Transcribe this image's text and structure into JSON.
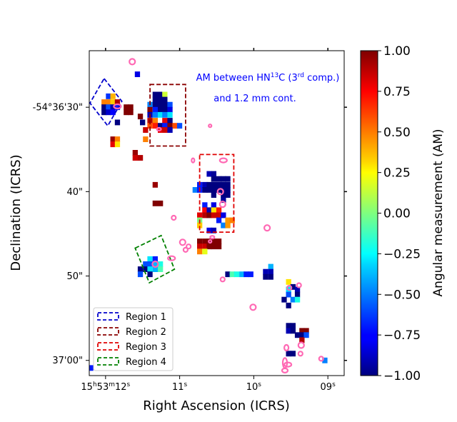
{
  "chart_data": {
    "type": "heatmap",
    "title": "",
    "annotation": {
      "line1_prefix": "AM between HN",
      "line1_sup": "13",
      "line1_mid": "C (3",
      "line1_sup2": "rd",
      "line1_suffix": " comp.)",
      "line2": "and 1.2 mm cont."
    },
    "xlabel": "Right Ascension (ICRS)",
    "ylabel": "Declination (ICRS)",
    "x_ticks": [
      {
        "label_parts": [
          "15",
          "h",
          "53",
          "m",
          "12",
          "s"
        ],
        "value": 12.0
      },
      {
        "label_parts": [
          "11",
          "s"
        ],
        "value": 11.0
      },
      {
        "label_parts": [
          "10",
          "s"
        ],
        "value": 10.0
      },
      {
        "label_parts": [
          "09",
          "s"
        ],
        "value": 9.0
      }
    ],
    "y_ticks": [
      {
        "label": "-54°36'30\"",
        "value": 30
      },
      {
        "label": "40\"",
        "value": 40
      },
      {
        "label": "50\"",
        "value": 50
      },
      {
        "label": "37'00\"",
        "value": 60
      }
    ],
    "xlim": [
      12.22,
      8.78
    ],
    "ylim": [
      61.8,
      23.3
    ],
    "colorbar": {
      "label": "Angular measurement (AM)",
      "range": [
        -1.0,
        1.0
      ],
      "tick_labels": [
        "1.00",
        "0.75",
        "0.50",
        "0.25",
        "0.00",
        "−0.25",
        "−0.50",
        "−0.75",
        "−1.00"
      ],
      "tick_values": [
        1.0,
        0.75,
        0.5,
        0.25,
        0.0,
        -0.25,
        -0.5,
        -0.75,
        -1.0
      ],
      "colormap": "jet"
    },
    "legend": {
      "placement": "lower-left",
      "entries": [
        {
          "name": "Region 1",
          "color": "#0000cc"
        },
        {
          "name": "Region 2",
          "color": "#8b0000"
        },
        {
          "name": "Region 3",
          "color": "#e00000"
        },
        {
          "name": "Region 4",
          "color": "#008000"
        }
      ]
    },
    "regions": [
      {
        "name": "Region 1",
        "color": "#0000cc",
        "corners": [
          [
            12.02,
            26.6
          ],
          [
            11.78,
            29.3
          ],
          [
            11.97,
            32.2
          ],
          [
            12.21,
            29.5
          ]
        ]
      },
      {
        "name": "Region 2",
        "color": "#8b0000",
        "corners": [
          [
            11.4,
            27.3
          ],
          [
            10.92,
            27.3
          ],
          [
            10.92,
            34.6
          ],
          [
            11.4,
            34.6
          ]
        ]
      },
      {
        "name": "Region 3",
        "color": "#e00000",
        "corners": [
          [
            10.73,
            35.6
          ],
          [
            10.27,
            35.6
          ],
          [
            10.27,
            44.8
          ],
          [
            10.73,
            44.8
          ]
        ]
      },
      {
        "name": "Region 4",
        "color": "#008000",
        "corners": [
          [
            11.6,
            46.7
          ],
          [
            11.25,
            45.2
          ],
          [
            11.07,
            49.2
          ],
          [
            11.41,
            50.8
          ]
        ]
      }
    ],
    "pixels": [
      [
        12.02,
        29.4,
        0.5
      ],
      [
        11.96,
        29.4,
        0.5
      ],
      [
        11.9,
        29.4,
        0.35
      ],
      [
        11.84,
        29.4,
        0.9
      ],
      [
        12.02,
        30.0,
        -1.0
      ],
      [
        11.96,
        30.0,
        -0.6
      ],
      [
        11.9,
        30.0,
        -0.9
      ],
      [
        11.84,
        30.0,
        -0.7
      ],
      [
        11.72,
        30.0,
        1.0
      ],
      [
        11.66,
        30.0,
        1.0
      ],
      [
        11.96,
        28.7,
        -0.65
      ],
      [
        11.9,
        28.7,
        0.4
      ],
      [
        12.02,
        30.6,
        -1.0
      ],
      [
        11.96,
        30.6,
        -0.85
      ],
      [
        11.9,
        30.6,
        -0.75
      ],
      [
        11.72,
        30.6,
        1.0
      ],
      [
        11.66,
        30.6,
        1.0
      ],
      [
        11.84,
        31.8,
        -1.0
      ],
      [
        11.57,
        26.1,
        -0.8
      ],
      [
        11.33,
        28.5,
        -1.0
      ],
      [
        11.26,
        28.5,
        -1.0
      ],
      [
        11.2,
        28.5,
        0.15
      ],
      [
        11.33,
        29.1,
        -1.0
      ],
      [
        11.26,
        29.1,
        -1.0
      ],
      [
        11.2,
        29.1,
        -1.0
      ],
      [
        11.4,
        29.7,
        -0.5
      ],
      [
        11.33,
        29.7,
        -1.0
      ],
      [
        11.26,
        29.7,
        -1.0
      ],
      [
        11.2,
        29.7,
        -1.0
      ],
      [
        11.13,
        29.7,
        -0.6
      ],
      [
        11.4,
        30.3,
        1.0
      ],
      [
        11.33,
        30.3,
        -0.7
      ],
      [
        11.26,
        30.3,
        -1.0
      ],
      [
        11.2,
        30.3,
        -1.0
      ],
      [
        11.13,
        30.3,
        -0.8
      ],
      [
        11.4,
        30.9,
        -0.9
      ],
      [
        11.33,
        30.9,
        -0.5
      ],
      [
        11.26,
        30.9,
        -0.3
      ],
      [
        11.2,
        30.9,
        -0.5
      ],
      [
        11.13,
        30.9,
        -0.3
      ],
      [
        11.53,
        31.1,
        1.0
      ],
      [
        11.4,
        31.6,
        0.9
      ],
      [
        11.33,
        31.6,
        0.5
      ],
      [
        11.2,
        31.6,
        0.8
      ],
      [
        11.13,
        31.6,
        -1.0
      ],
      [
        11.5,
        31.8,
        -1.0
      ],
      [
        11.4,
        32.2,
        0.6
      ],
      [
        11.33,
        32.2,
        0.7
      ],
      [
        11.26,
        32.2,
        -1.0
      ],
      [
        11.2,
        32.2,
        -0.7
      ],
      [
        11.13,
        32.2,
        1.0
      ],
      [
        11.06,
        32.2,
        0.6
      ],
      [
        11.0,
        32.2,
        -0.6
      ],
      [
        11.46,
        32.7,
        0.85
      ],
      [
        11.26,
        32.7,
        0.8
      ],
      [
        11.2,
        32.7,
        0.85
      ],
      [
        11.13,
        32.7,
        -0.9
      ],
      [
        11.9,
        33.8,
        0.95
      ],
      [
        11.84,
        33.8,
        0.5
      ],
      [
        11.46,
        33.8,
        0.5
      ],
      [
        11.9,
        34.4,
        0.8
      ],
      [
        11.84,
        34.4,
        0.3
      ],
      [
        11.6,
        35.4,
        0.95
      ],
      [
        11.6,
        36.0,
        0.85
      ],
      [
        11.53,
        36.0,
        0.9
      ],
      [
        11.33,
        39.2,
        0.95
      ],
      [
        10.6,
        37.9,
        -0.9
      ],
      [
        10.54,
        37.9,
        -0.95
      ],
      [
        10.54,
        38.5,
        -1.0
      ],
      [
        10.47,
        38.5,
        -1.0
      ],
      [
        10.41,
        38.5,
        -1.0
      ],
      [
        10.35,
        38.5,
        -1.0
      ],
      [
        10.73,
        39.2,
        -0.7
      ],
      [
        10.66,
        39.2,
        -0.9
      ],
      [
        10.6,
        39.2,
        -1.0
      ],
      [
        10.54,
        39.2,
        -1.0
      ],
      [
        10.47,
        39.2,
        -1.0
      ],
      [
        10.41,
        39.2,
        -1.0
      ],
      [
        10.35,
        39.2,
        -1.0
      ],
      [
        10.79,
        39.8,
        -0.5
      ],
      [
        10.73,
        39.8,
        -0.7
      ],
      [
        10.66,
        39.8,
        -1.0
      ],
      [
        10.6,
        39.8,
        -1.0
      ],
      [
        10.54,
        39.8,
        -1.0
      ],
      [
        10.47,
        39.8,
        -1.0
      ],
      [
        10.41,
        39.8,
        -1.0
      ],
      [
        10.35,
        39.8,
        -1.0
      ],
      [
        10.54,
        40.4,
        -1.0
      ],
      [
        10.41,
        40.4,
        -1.0
      ],
      [
        10.35,
        40.4,
        -1.0
      ],
      [
        10.41,
        41.0,
        -0.95
      ],
      [
        10.66,
        41.6,
        -0.7
      ],
      [
        10.54,
        41.6,
        -0.8
      ],
      [
        11.33,
        41.4,
        1.0
      ],
      [
        11.26,
        41.4,
        1.0
      ],
      [
        10.66,
        42.2,
        0.75
      ],
      [
        10.6,
        42.2,
        -0.9
      ],
      [
        10.54,
        42.2,
        0.3
      ],
      [
        10.47,
        42.2,
        0.7
      ],
      [
        10.73,
        42.8,
        0.8
      ],
      [
        10.66,
        42.8,
        0.9
      ],
      [
        10.6,
        42.8,
        1.0
      ],
      [
        10.54,
        42.8,
        0.85
      ],
      [
        10.47,
        42.8,
        0.85
      ],
      [
        10.41,
        42.8,
        -0.8
      ],
      [
        10.73,
        43.4,
        0.0
      ],
      [
        10.47,
        43.4,
        -0.7
      ],
      [
        10.35,
        43.4,
        0.45
      ],
      [
        10.29,
        43.4,
        0.5
      ],
      [
        10.73,
        44.0,
        0.35
      ],
      [
        10.41,
        44.0,
        -0.5
      ],
      [
        10.35,
        44.0,
        0.45
      ],
      [
        10.6,
        44.6,
        -0.8
      ],
      [
        10.54,
        44.6,
        -0.9
      ],
      [
        10.73,
        45.9,
        1.0
      ],
      [
        10.66,
        45.9,
        1.0
      ],
      [
        10.6,
        45.9,
        1.0
      ],
      [
        10.54,
        45.9,
        1.0
      ],
      [
        10.47,
        45.9,
        1.0
      ],
      [
        10.73,
        46.5,
        0.85
      ],
      [
        10.66,
        46.5,
        0.85
      ],
      [
        10.6,
        46.5,
        1.0
      ],
      [
        10.54,
        46.5,
        1.0
      ],
      [
        10.47,
        46.5,
        1.0
      ],
      [
        10.73,
        47.1,
        0.5
      ],
      [
        10.66,
        47.1,
        0.2
      ],
      [
        11.4,
        48.0,
        -0.3
      ],
      [
        11.33,
        48.0,
        -0.7
      ],
      [
        11.46,
        48.6,
        -0.6
      ],
      [
        11.4,
        48.6,
        -0.6
      ],
      [
        11.33,
        48.6,
        -0.4
      ],
      [
        11.26,
        48.6,
        -0.2
      ],
      [
        11.53,
        49.2,
        -1.0
      ],
      [
        11.46,
        49.2,
        -1.0
      ],
      [
        11.4,
        49.2,
        -0.3
      ],
      [
        11.33,
        49.2,
        -0.4
      ],
      [
        11.26,
        49.2,
        -0.1
      ],
      [
        11.53,
        49.8,
        -0.6
      ],
      [
        11.4,
        49.8,
        -1.0
      ],
      [
        10.35,
        49.8,
        -1.0
      ],
      [
        10.29,
        49.8,
        -0.1
      ],
      [
        10.23,
        49.8,
        -0.2
      ],
      [
        10.16,
        49.8,
        -0.4
      ],
      [
        10.1,
        49.8,
        -0.7
      ],
      [
        10.04,
        49.8,
        -0.7
      ],
      [
        9.77,
        48.9,
        -0.4
      ],
      [
        9.84,
        49.5,
        -0.9
      ],
      [
        9.77,
        49.5,
        -0.9
      ],
      [
        9.84,
        50.1,
        -1.0
      ],
      [
        9.77,
        50.1,
        -1.0
      ],
      [
        9.53,
        50.7,
        0.3
      ],
      [
        9.47,
        51.3,
        -1.0
      ],
      [
        9.53,
        51.6,
        -0.3
      ],
      [
        9.41,
        51.6,
        -0.9
      ],
      [
        9.53,
        52.2,
        -0.6
      ],
      [
        9.41,
        52.2,
        -1.0
      ],
      [
        9.47,
        52.8,
        -0.5
      ],
      [
        9.41,
        52.8,
        -0.2
      ],
      [
        9.59,
        52.8,
        -1.0
      ],
      [
        9.53,
        53.5,
        -1.0
      ],
      [
        9.53,
        55.9,
        -1.0
      ],
      [
        9.47,
        55.9,
        -1.0
      ],
      [
        9.53,
        56.5,
        -0.9
      ],
      [
        9.47,
        56.5,
        -1.0
      ],
      [
        9.35,
        56.5,
        1.0
      ],
      [
        9.29,
        56.5,
        1.0
      ],
      [
        9.41,
        57.0,
        -1.0
      ],
      [
        9.35,
        57.0,
        -1.0
      ],
      [
        9.29,
        57.0,
        -0.6
      ],
      [
        9.35,
        57.6,
        0.9
      ],
      [
        9.53,
        59.2,
        -1.0
      ],
      [
        9.47,
        59.2,
        -1.0
      ],
      [
        9.04,
        60.0,
        -0.5
      ],
      [
        12.2,
        60.9,
        -0.7
      ]
    ],
    "contours": [
      [
        11.64,
        24.6,
        4,
        4
      ],
      [
        11.84,
        29.9,
        5,
        3
      ],
      [
        11.28,
        32.6,
        3,
        2
      ],
      [
        10.59,
        32.2,
        2,
        2
      ],
      [
        10.82,
        36.3,
        2,
        3
      ],
      [
        10.41,
        36.3,
        5,
        3
      ],
      [
        10.45,
        40.0,
        4,
        4
      ],
      [
        10.42,
        41.5,
        4,
        4
      ],
      [
        11.08,
        43.1,
        3,
        3
      ],
      [
        9.82,
        44.3,
        4,
        4
      ],
      [
        10.56,
        45.4,
        3,
        2
      ],
      [
        10.96,
        46.0,
        4,
        4
      ],
      [
        10.88,
        46.5,
        3,
        3
      ],
      [
        10.92,
        46.9,
        3,
        3
      ],
      [
        11.11,
        47.9,
        5,
        3
      ],
      [
        10.59,
        45.9,
        2,
        2
      ],
      [
        11.33,
        48.6,
        4,
        4
      ],
      [
        10.42,
        50.4,
        3,
        3
      ],
      [
        10.01,
        53.7,
        4,
        4
      ],
      [
        9.52,
        51.4,
        3,
        3
      ],
      [
        9.39,
        51.1,
        3,
        3
      ],
      [
        9.56,
        58.5,
        3,
        4
      ],
      [
        9.36,
        58.2,
        4,
        4
      ],
      [
        9.37,
        59.2,
        3,
        3
      ],
      [
        9.58,
        60.3,
        3,
        7
      ],
      [
        9.54,
        60.5,
        5,
        3
      ],
      [
        9.58,
        61.2,
        4,
        3
      ],
      [
        9.09,
        59.8,
        3,
        3
      ]
    ]
  }
}
